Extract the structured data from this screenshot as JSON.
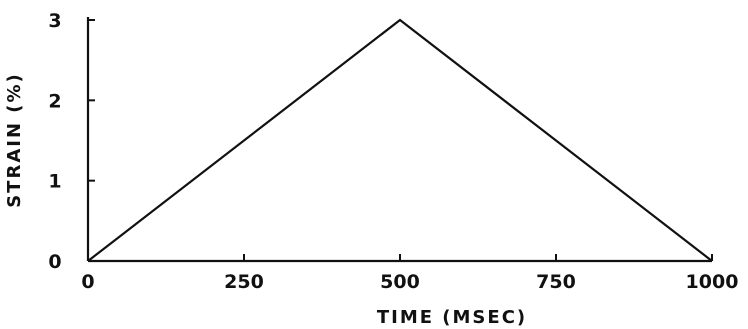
{
  "chart_data": {
    "type": "line",
    "title": "",
    "xlabel": "TIME (MSEC)",
    "ylabel": "STRAIN (%)",
    "xlim": [
      0,
      1000
    ],
    "ylim": [
      0,
      3
    ],
    "x_ticks": [
      0,
      250,
      500,
      750,
      1000
    ],
    "x_tick_labels": [
      "0",
      "250",
      "500",
      "750",
      "1000"
    ],
    "y_ticks": [
      0,
      1,
      2,
      3
    ],
    "y_tick_labels": [
      "0",
      "1",
      "2",
      "3"
    ],
    "grid": false,
    "series": [
      {
        "x": [
          0,
          500,
          1000
        ],
        "y": [
          0,
          3,
          0
        ],
        "color": "#111111"
      }
    ]
  }
}
